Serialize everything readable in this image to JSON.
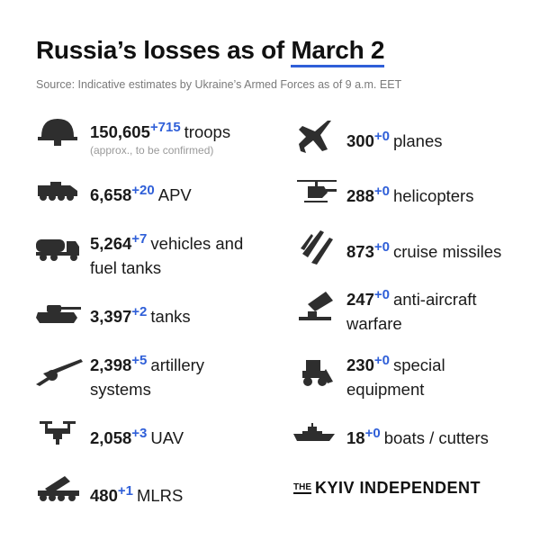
{
  "title": {
    "text": "Russia’s losses as of",
    "date": "March 2"
  },
  "source": "Source: Indicative estimates by Ukraine’s Armed Forces as of 9 a.m. EET",
  "left": [
    {
      "value": "150,605",
      "delta": "+715",
      "label": "troops",
      "note": "(approx., to be confirmed)"
    },
    {
      "value": "6,658",
      "delta": "+20",
      "label": "APV"
    },
    {
      "value": "5,264",
      "delta": "+7",
      "label": "vehicles and fuel tanks"
    },
    {
      "value": "3,397",
      "delta": "+2",
      "label": "tanks"
    },
    {
      "value": "2,398",
      "delta": "+5",
      "label": "artillery systems"
    },
    {
      "value": "2,058",
      "delta": "+3",
      "label": "UAV"
    },
    {
      "value": "480",
      "delta": "+1",
      "label": "MLRS"
    }
  ],
  "right": [
    {
      "value": "300",
      "delta": "+0",
      "label": "planes"
    },
    {
      "value": "288",
      "delta": "+0",
      "label": "helicopters"
    },
    {
      "value": "873",
      "delta": "+0",
      "label": "cruise missiles"
    },
    {
      "value": "247",
      "delta": "+0",
      "label": "anti-aircraft warfare"
    },
    {
      "value": "230",
      "delta": "+0",
      "label": "special equipment"
    },
    {
      "value": "18",
      "delta": "+0",
      "label": "boats / cutters"
    }
  ],
  "logo": {
    "small": "THE",
    "name": "KYIV INDEPENDENT"
  }
}
